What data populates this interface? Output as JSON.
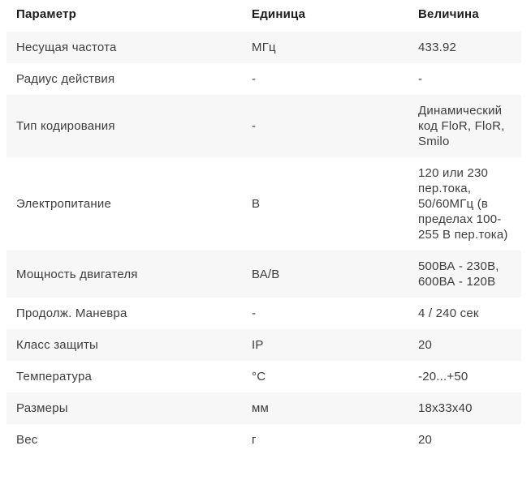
{
  "colors": {
    "stripe_background": "#f7f7f7",
    "header_text": "#1c1c1c",
    "body_text": "#3d3d3d",
    "page_background": "#ffffff"
  },
  "table": {
    "columns": [
      {
        "key": "param",
        "label": "Параметр"
      },
      {
        "key": "unit",
        "label": "Единица"
      },
      {
        "key": "value",
        "label": "Величина"
      }
    ],
    "rows": [
      {
        "param": "Несущая частота",
        "unit": "МГц",
        "value": "433.92"
      },
      {
        "param": "Радиус действия",
        "unit": "-",
        "value": "-"
      },
      {
        "param": "Тип кодирования",
        "unit": "-",
        "value": "Динамический код FloR, FloR, Smilo"
      },
      {
        "param": "Электропитание",
        "unit": "В",
        "value": "120 или 230 пер.тока, 50/60МГц (в пределах 100-255 В пер.тока)"
      },
      {
        "param": "Мощность двигателя",
        "unit": "ВА/В",
        "value": "500ВА - 230В, 600ВА - 120В"
      },
      {
        "param": "Продолж. Маневра",
        "unit": "-",
        "value": "4 / 240 сек"
      },
      {
        "param": "Класс защиты",
        "unit": "IP",
        "value": "20"
      },
      {
        "param": "Температура",
        "unit": "°С",
        "value": "-20...+50"
      },
      {
        "param": "Размеры",
        "unit": "мм",
        "value": "18х33х40"
      },
      {
        "param": "Вес",
        "unit": "г",
        "value": "20"
      }
    ]
  }
}
